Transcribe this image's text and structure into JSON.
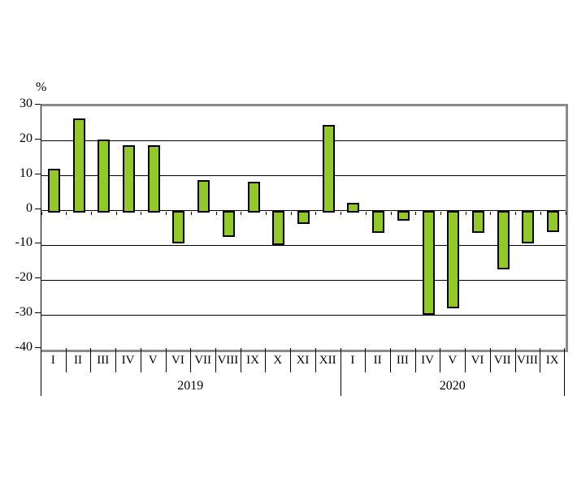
{
  "chart_data": {
    "type": "bar",
    "title": "",
    "ylabel": "%",
    "xlabel": "",
    "ylim": [
      -40,
      30
    ],
    "yticks": [
      30,
      20,
      10,
      0,
      -10,
      -20,
      -30,
      -40
    ],
    "grid": "horizontal",
    "legend": "none",
    "bar_color": "#93C829",
    "bar_border_color": "#000000",
    "frame_color": "#8a8a8a",
    "groups": [
      {
        "year": "2019",
        "categories": [
          "I",
          "II",
          "III",
          "IV",
          "V",
          "VI",
          "VII",
          "VIII",
          "IX",
          "X",
          "XI",
          "XII"
        ],
        "values": [
          12.1,
          26.4,
          20.4,
          18.7,
          18.9,
          -9.4,
          8.7,
          -7.6,
          8.4,
          -10.0,
          -3.8,
          24.7
        ]
      },
      {
        "year": "2020",
        "categories": [
          "I",
          "II",
          "III",
          "IV",
          "V",
          "VI",
          "VII",
          "VIII",
          "IX"
        ],
        "values": [
          2.3,
          -6.4,
          -2.9,
          -29.9,
          -28.2,
          -6.5,
          -17.0,
          -9.5,
          -6.1
        ]
      }
    ]
  }
}
